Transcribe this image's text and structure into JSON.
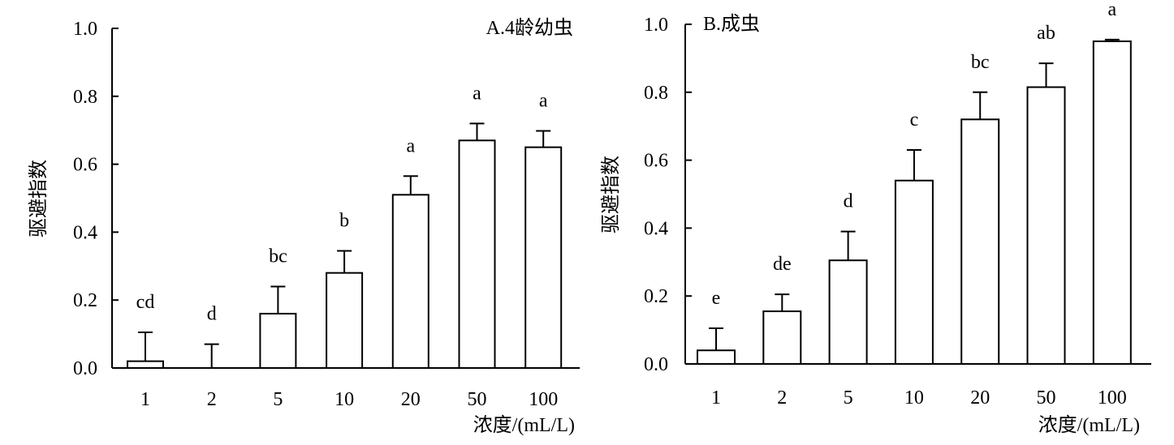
{
  "chart_data": [
    {
      "type": "bar",
      "title": "A.4龄幼虫",
      "xlabel": "浓度/(mL/L)",
      "ylabel": "驱避指数",
      "ylim": [
        0,
        1.0
      ],
      "yticks": [
        "0.0",
        "0.2",
        "0.4",
        "0.6",
        "0.8",
        "1.0"
      ],
      "categories": [
        "1",
        "2",
        "5",
        "10",
        "20",
        "50",
        "100"
      ],
      "values": [
        0.02,
        0.0,
        0.16,
        0.28,
        0.51,
        0.67,
        0.65
      ],
      "errors": [
        0.085,
        0.07,
        0.08,
        0.065,
        0.055,
        0.05,
        0.048
      ],
      "letters": [
        "cd",
        "d",
        "bc",
        "b",
        "a",
        "a",
        "a"
      ],
      "grid": false,
      "legend": "none"
    },
    {
      "type": "bar",
      "title": "B.成虫",
      "xlabel": "浓度/(mL/L)",
      "ylabel": "驱避指数",
      "ylim": [
        0,
        1.0
      ],
      "yticks": [
        "0.0",
        "0.2",
        "0.4",
        "0.6",
        "0.8",
        "1.0"
      ],
      "categories": [
        "1",
        "2",
        "5",
        "10",
        "20",
        "50",
        "100"
      ],
      "values": [
        0.04,
        0.155,
        0.305,
        0.54,
        0.72,
        0.815,
        0.95
      ],
      "errors": [
        0.065,
        0.05,
        0.085,
        0.09,
        0.08,
        0.07,
        0.005
      ],
      "letters": [
        "e",
        "de",
        "d",
        "c",
        "bc",
        "ab",
        "a"
      ],
      "grid": false,
      "legend": "none"
    }
  ]
}
